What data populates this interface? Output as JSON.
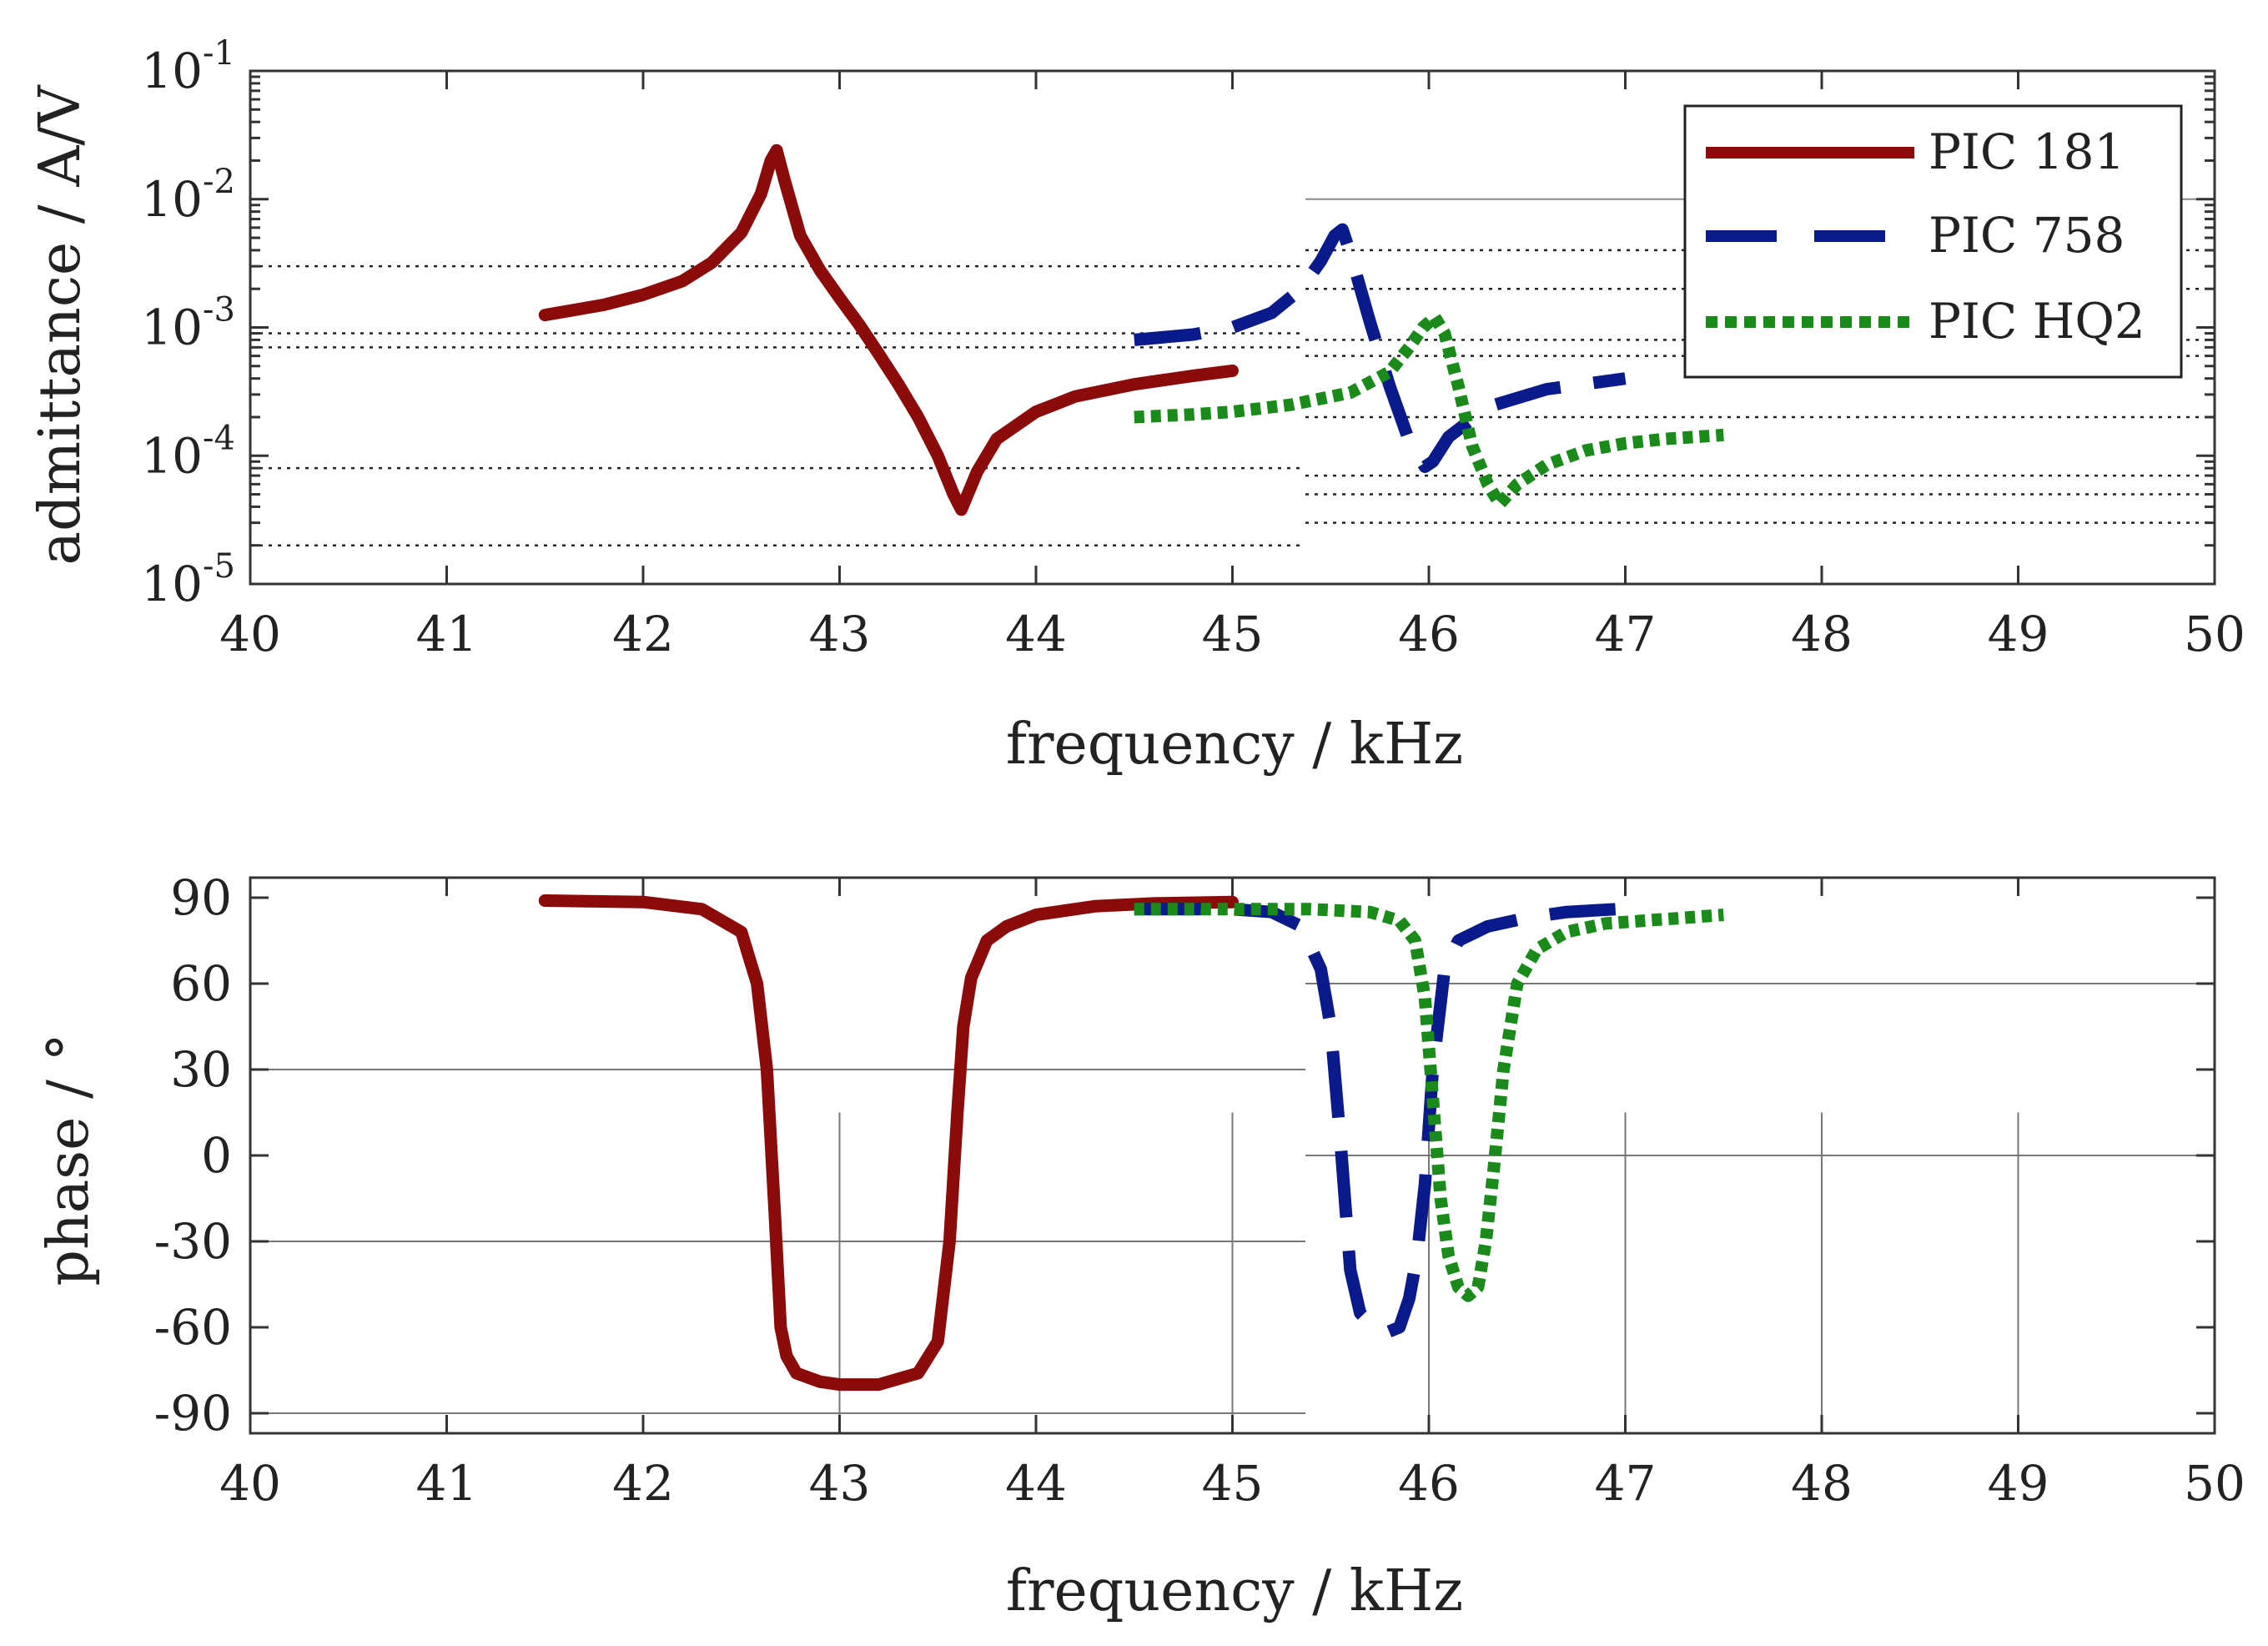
{
  "chart_data": [
    {
      "type": "line",
      "id": "admittance",
      "xlabel": "frequency / kHz",
      "ylabel": "admittance / A/V",
      "yscale": "log",
      "xlim": [
        40,
        50
      ],
      "ylim": [
        1e-05,
        0.1
      ],
      "xticks": [
        "40",
        "41",
        "42",
        "43",
        "44",
        "45",
        "46",
        "47",
        "48",
        "49",
        "50"
      ],
      "yticks": [
        {
          "base": "10",
          "exp": "-5"
        },
        {
          "base": "10",
          "exp": "-4"
        },
        {
          "base": "10",
          "exp": "-3"
        },
        {
          "base": "10",
          "exp": "-2"
        },
        {
          "base": "10",
          "exp": "-1"
        }
      ],
      "legend": {
        "position": "top-right",
        "entries": [
          "PIC 181",
          "PIC 758",
          "PIC HQ2"
        ]
      },
      "series": [
        {
          "name": "PIC 181",
          "color": "#8b0a0a",
          "style": "solid",
          "x": [
            41.5,
            41.8,
            42.0,
            42.2,
            42.35,
            42.5,
            42.6,
            42.65,
            42.68,
            42.72,
            42.8,
            42.9,
            43.0,
            43.1,
            43.2,
            43.3,
            43.4,
            43.5,
            43.58,
            43.62,
            43.7,
            43.8,
            44.0,
            44.2,
            44.5,
            44.8,
            45.0
          ],
          "y": [
            0.00125,
            0.0015,
            0.0018,
            0.0023,
            0.0032,
            0.0055,
            0.011,
            0.02,
            0.024,
            0.014,
            0.0052,
            0.0028,
            0.0017,
            0.00105,
            0.00062,
            0.00036,
            0.0002,
            0.0001,
            5e-05,
            3.8e-05,
            7.5e-05,
            0.000135,
            0.00022,
            0.00029,
            0.00036,
            0.00042,
            0.00046
          ]
        },
        {
          "name": "PIC 758",
          "color": "#0a1a8b",
          "style": "dashed",
          "x": [
            44.5,
            44.8,
            45.0,
            45.2,
            45.35,
            45.45,
            45.52,
            45.56,
            45.6,
            45.7,
            45.8,
            45.9,
            45.98,
            46.02,
            46.1,
            46.3,
            46.6,
            47.0
          ],
          "y": [
            0.0008,
            0.00088,
            0.001,
            0.0013,
            0.002,
            0.0033,
            0.0052,
            0.0058,
            0.0038,
            0.0011,
            0.00035,
            0.00013,
            8.2e-05,
            9e-05,
            0.00014,
            0.00024,
            0.00033,
            0.0004
          ]
        },
        {
          "name": "PIC HQ2",
          "color": "#1a8b1a",
          "style": "dotted",
          "x": [
            44.5,
            44.8,
            45.0,
            45.3,
            45.6,
            45.8,
            45.9,
            45.97,
            46.03,
            46.08,
            46.15,
            46.22,
            46.3,
            46.36,
            46.45,
            46.6,
            46.8,
            47.0,
            47.2,
            47.5
          ],
          "y": [
            0.0002,
            0.00021,
            0.00022,
            0.00025,
            0.00031,
            0.00045,
            0.0007,
            0.001,
            0.0012,
            0.0009,
            0.00035,
            0.00012,
            6e-05,
            4.2e-05,
            6e-05,
            8.5e-05,
            0.00011,
            0.000125,
            0.000135,
            0.000145
          ]
        }
      ]
    },
    {
      "type": "line",
      "id": "phase",
      "xlabel": "frequency / kHz",
      "ylabel": "phase / °",
      "xlim": [
        40,
        50
      ],
      "ylim": [
        -97,
        97
      ],
      "xticks": [
        "40",
        "41",
        "42",
        "43",
        "44",
        "45",
        "46",
        "47",
        "48",
        "49",
        "50"
      ],
      "yticks": [
        "-90",
        "-60",
        "-30",
        "0",
        "30",
        "60",
        "90"
      ],
      "series": [
        {
          "name": "PIC 181",
          "color": "#8b0a0a",
          "style": "solid",
          "x": [
            41.5,
            42.0,
            42.3,
            42.5,
            42.58,
            42.63,
            42.67,
            42.7,
            42.73,
            42.78,
            42.9,
            43.0,
            43.2,
            43.4,
            43.5,
            43.56,
            43.6,
            43.63,
            43.67,
            43.75,
            43.85,
            44.0,
            44.3,
            44.6,
            45.0
          ],
          "y": [
            89,
            88.5,
            86,
            78,
            60,
            30,
            -20,
            -60,
            -70,
            -76,
            -79,
            -80,
            -80,
            -76,
            -65,
            -30,
            15,
            45,
            62,
            75,
            80,
            84,
            87,
            88,
            88.5
          ]
        },
        {
          "name": "PIC 758",
          "color": "#0a1a8b",
          "style": "dashed",
          "x": [
            44.5,
            45.0,
            45.2,
            45.35,
            45.45,
            45.5,
            45.55,
            45.6,
            45.65,
            45.72,
            45.78,
            45.85,
            45.9,
            45.94,
            45.98,
            46.02,
            46.08,
            46.15,
            46.3,
            46.5,
            46.7,
            46.95
          ],
          "y": [
            86,
            86,
            85,
            80,
            65,
            45,
            5,
            -40,
            -55,
            -60,
            -62,
            -60,
            -50,
            -35,
            -10,
            30,
            65,
            75,
            80,
            83,
            85,
            86
          ]
        },
        {
          "name": "PIC HQ2",
          "color": "#1a8b1a",
          "style": "dotted",
          "x": [
            44.5,
            45.0,
            45.4,
            45.7,
            45.85,
            45.93,
            45.98,
            46.02,
            46.06,
            46.1,
            46.15,
            46.2,
            46.25,
            46.29,
            46.33,
            46.38,
            46.45,
            46.55,
            46.7,
            46.9,
            47.1,
            47.3,
            47.5
          ],
          "y": [
            86,
            86,
            86,
            85,
            82,
            75,
            55,
            20,
            -15,
            -35,
            -46,
            -49,
            -46,
            -30,
            -5,
            30,
            60,
            72,
            78,
            81,
            82,
            83,
            84
          ]
        }
      ]
    }
  ]
}
